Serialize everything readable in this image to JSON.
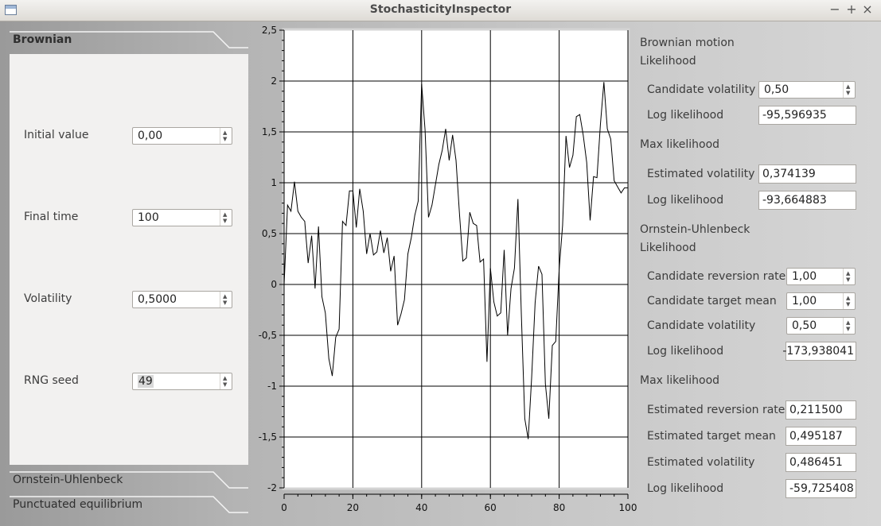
{
  "window": {
    "title": "StochasticityInspector"
  },
  "tabs": [
    {
      "label": "Brownian"
    },
    {
      "label": "Ornstein-Uhlenbeck"
    },
    {
      "label": "Punctuated equilibrium"
    }
  ],
  "brownian_params": {
    "initial_value": {
      "label": "Initial value",
      "value": "0,00"
    },
    "final_time": {
      "label": "Final time",
      "value": "100"
    },
    "volatility": {
      "label": "Volatility",
      "value": "0,5000"
    },
    "rng_seed": {
      "label": "RNG seed",
      "value": "49"
    }
  },
  "chart_data": {
    "type": "line",
    "x": [
      0,
      1,
      2,
      3,
      4,
      5,
      6,
      7,
      8,
      9,
      10,
      11,
      12,
      13,
      14,
      15,
      16,
      17,
      18,
      19,
      20,
      21,
      22,
      23,
      24,
      25,
      26,
      27,
      28,
      29,
      30,
      31,
      32,
      33,
      34,
      35,
      36,
      37,
      38,
      39,
      40,
      41,
      42,
      43,
      44,
      45,
      46,
      47,
      48,
      49,
      50,
      51,
      52,
      53,
      54,
      55,
      56,
      57,
      58,
      59,
      60,
      61,
      62,
      63,
      64,
      65,
      66,
      67,
      68,
      69,
      70,
      71,
      72,
      73,
      74,
      75,
      76,
      77,
      78,
      79,
      80,
      81,
      82,
      83,
      84,
      85,
      86,
      87,
      88,
      89,
      90,
      91,
      92,
      93,
      94,
      95,
      96,
      97,
      98,
      99,
      100
    ],
    "values": [
      0.0,
      0.78,
      0.72,
      1.01,
      0.72,
      0.66,
      0.62,
      0.21,
      0.48,
      -0.04,
      0.57,
      -0.12,
      -0.28,
      -0.73,
      -0.9,
      -0.52,
      -0.44,
      0.62,
      0.58,
      0.92,
      0.92,
      0.56,
      0.94,
      0.72,
      0.3,
      0.5,
      0.29,
      0.32,
      0.53,
      0.31,
      0.46,
      0.13,
      0.28,
      -0.4,
      -0.29,
      -0.15,
      0.3,
      0.46,
      0.68,
      0.82,
      1.97,
      1.52,
      0.66,
      0.78,
      0.98,
      1.18,
      1.32,
      1.53,
      1.22,
      1.47,
      1.22,
      0.7,
      0.23,
      0.26,
      0.71,
      0.6,
      0.58,
      0.22,
      0.25,
      -0.76,
      0.16,
      -0.17,
      -0.31,
      -0.28,
      0.34,
      -0.5,
      -0.04,
      0.16,
      0.84,
      -0.3,
      -1.32,
      -1.52,
      -0.92,
      -0.18,
      0.18,
      0.1,
      -0.98,
      -1.32,
      -0.6,
      -0.56,
      0.15,
      0.58,
      1.46,
      1.15,
      1.27,
      1.65,
      1.67,
      1.47,
      1.2,
      0.63,
      1.06,
      1.05,
      1.57,
      1.99,
      1.53,
      1.43,
      1.02,
      0.96,
      0.9,
      0.95,
      0.95
    ],
    "xlim": [
      0,
      100
    ],
    "ylim": [
      -2,
      2.5
    ],
    "xticks": [
      0,
      20,
      40,
      60,
      80,
      100
    ],
    "xtick_labels": [
      "0",
      "20",
      "40",
      "60",
      "80",
      "100"
    ],
    "yticks": [
      -2,
      -1.5,
      -1,
      -0.5,
      0,
      0.5,
      1,
      1.5,
      2,
      2.5
    ],
    "ytick_labels": [
      "-2",
      "-1,5",
      "-1",
      "-0,5",
      "0",
      "0,5",
      "1",
      "1,5",
      "2",
      "2,5"
    ],
    "grid": true,
    "line_color": "#000000"
  },
  "results": {
    "brownian": {
      "title": "Brownian motion",
      "likelihood_title": "Likelihood",
      "candidate_volatility": {
        "label": "Candidate volatility",
        "value": "0,50"
      },
      "log_likelihood": {
        "label": "Log likelihood",
        "value": "-95,596935"
      },
      "max_title": "Max likelihood",
      "estimated_volatility": {
        "label": "Estimated volatility",
        "value": "0,374139"
      },
      "max_log_likelihood": {
        "label": "Log likelihood",
        "value": "-93,664883"
      }
    },
    "ou": {
      "title": "Ornstein-Uhlenbeck",
      "likelihood_title": "Likelihood",
      "candidate_reversion_rate": {
        "label": "Candidate reversion rate",
        "value": "1,00"
      },
      "candidate_target_mean": {
        "label": "Candidate target mean",
        "value": "1,00"
      },
      "candidate_volatility": {
        "label": "Candidate volatility",
        "value": "0,50"
      },
      "log_likelihood": {
        "label": "Log likelihood",
        "value": "-173,938041"
      },
      "max_title": "Max likelihood",
      "estimated_reversion_rate": {
        "label": "Estimated reversion rate",
        "value": "0,211500"
      },
      "estimated_target_mean": {
        "label": "Estimated target mean",
        "value": "0,495187"
      },
      "estimated_volatility": {
        "label": "Estimated volatility",
        "value": "0,486451"
      },
      "max_log_likelihood": {
        "label": "Log likelihood",
        "value": "-59,725408"
      }
    }
  }
}
